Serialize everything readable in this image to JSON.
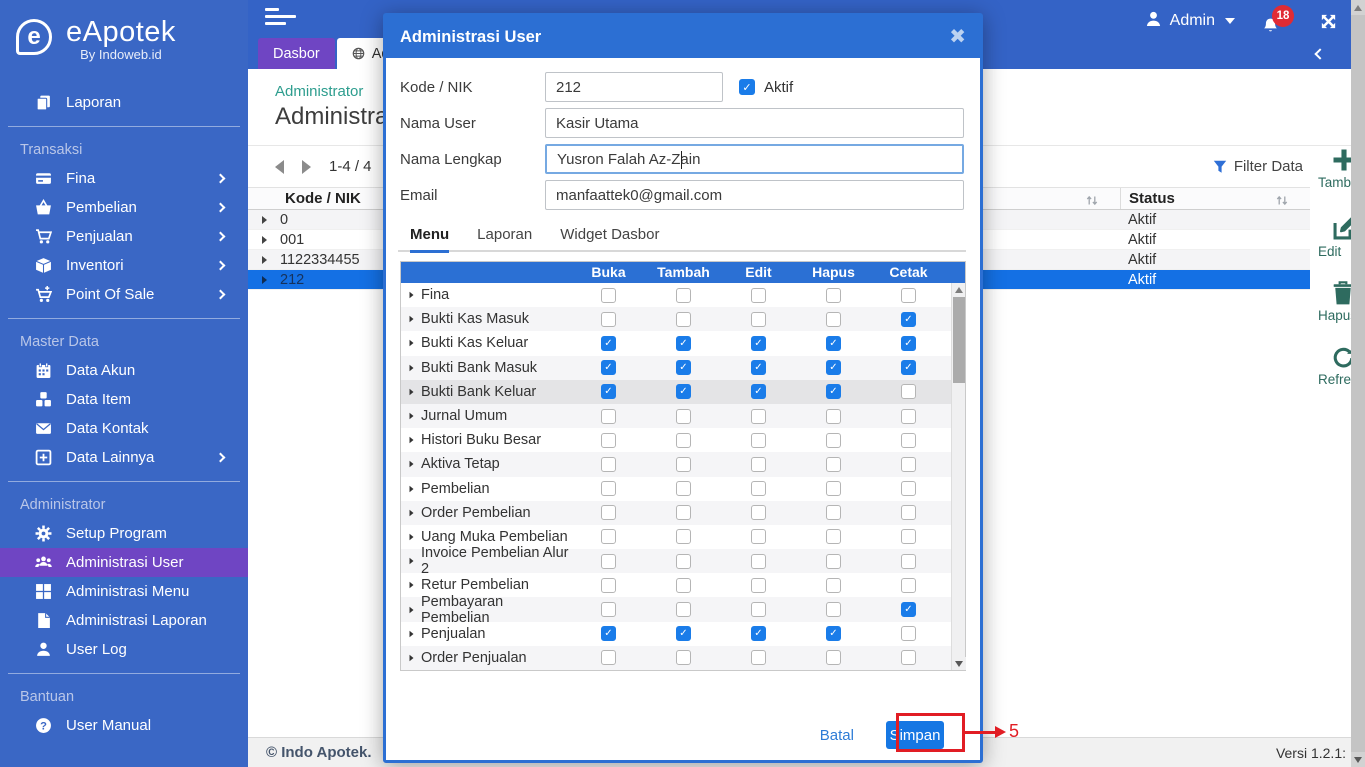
{
  "app": {
    "name": "eApotek",
    "tagline": "By Indoweb.id"
  },
  "header": {
    "user_label": "Admin",
    "notification_count": "18",
    "tabs": [
      {
        "label": "Dasbor",
        "active": true
      },
      {
        "label": "Admi",
        "active": false,
        "icon": "globe"
      }
    ]
  },
  "sidebar": {
    "sections": [
      {
        "title": "",
        "items": [
          {
            "label": "Laporan",
            "icon": "copy"
          }
        ]
      },
      {
        "title": "Transaksi",
        "items": [
          {
            "label": "Fina",
            "icon": "credit-card",
            "chevron": true
          },
          {
            "label": "Pembelian",
            "icon": "basket",
            "chevron": true
          },
          {
            "label": "Penjualan",
            "icon": "cart",
            "chevron": true
          },
          {
            "label": "Inventori",
            "icon": "box",
            "chevron": true
          },
          {
            "label": "Point Of Sale",
            "icon": "cart-plus",
            "chevron": true
          }
        ]
      },
      {
        "title": "Master Data",
        "items": [
          {
            "label": "Data Akun",
            "icon": "calendar"
          },
          {
            "label": "Data Item",
            "icon": "cubes"
          },
          {
            "label": "Data Kontak",
            "icon": "envelope"
          },
          {
            "label": "Data Lainnya",
            "icon": "plus-square",
            "chevron": true
          }
        ]
      },
      {
        "title": "Administrator",
        "items": [
          {
            "label": "Setup Program",
            "icon": "gear"
          },
          {
            "label": "Administrasi User",
            "icon": "users",
            "active": true
          },
          {
            "label": "Administrasi Menu",
            "icon": "grid"
          },
          {
            "label": "Administrasi Laporan",
            "icon": "file"
          },
          {
            "label": "User Log",
            "icon": "user"
          }
        ]
      },
      {
        "title": "Bantuan",
        "items": [
          {
            "label": "User Manual",
            "icon": "question"
          }
        ]
      }
    ]
  },
  "page": {
    "breadcrumb": "Administrator",
    "title": "Administrasi",
    "pagination": "1-4 / 4",
    "filter_label": "Filter Data",
    "table": {
      "columns": [
        "Kode / NIK",
        "Status"
      ],
      "rows": [
        {
          "kode": "0",
          "status": "Aktif",
          "selected": false
        },
        {
          "kode": "001",
          "status": "Aktif",
          "selected": false
        },
        {
          "kode": "1122334455",
          "status": "Aktif",
          "selected": false
        },
        {
          "kode": "212",
          "status": "Aktif",
          "selected": true
        }
      ]
    },
    "footer_left": "© Indo Apotek.",
    "footer_right": "Versi 1.2.1:"
  },
  "actions": [
    {
      "label": "Tambah",
      "icon": "plus"
    },
    {
      "label": "Edit",
      "icon": "edit"
    },
    {
      "label": "Hapus",
      "icon": "trash"
    },
    {
      "label": "Refresh",
      "icon": "refresh"
    }
  ],
  "modal": {
    "title": "Administrasi User",
    "fields": {
      "kode_label": "Kode / NIK",
      "kode_value": "212",
      "aktif_label": "Aktif",
      "aktif_checked": true,
      "nama_user_label": "Nama User",
      "nama_user_value": "Kasir Utama",
      "nama_lengkap_label": "Nama Lengkap",
      "nama_lengkap_value": "Yusron Falah Az-Zain",
      "email_label": "Email",
      "email_value": "manfaattek0@gmail.com"
    },
    "tabs": [
      "Menu",
      "Laporan",
      "Widget Dasbor"
    ],
    "active_tab": "Menu",
    "permission_columns": [
      "Buka",
      "Tambah",
      "Edit",
      "Hapus",
      "Cetak"
    ],
    "permissions": [
      {
        "name": "Fina",
        "values": [
          0,
          0,
          0,
          0,
          0
        ]
      },
      {
        "name": "Bukti Kas Masuk",
        "values": [
          0,
          0,
          0,
          0,
          1
        ]
      },
      {
        "name": "Bukti Kas Keluar",
        "values": [
          1,
          1,
          1,
          1,
          1
        ]
      },
      {
        "name": "Bukti Bank Masuk",
        "values": [
          1,
          1,
          1,
          1,
          1
        ]
      },
      {
        "name": "Bukti Bank Keluar",
        "values": [
          1,
          1,
          1,
          1,
          0
        ],
        "highlight": true
      },
      {
        "name": "Jurnal Umum",
        "values": [
          0,
          0,
          0,
          0,
          0
        ]
      },
      {
        "name": "Histori Buku Besar",
        "values": [
          0,
          0,
          0,
          0,
          0
        ]
      },
      {
        "name": "Aktiva Tetap",
        "values": [
          0,
          0,
          0,
          0,
          0
        ]
      },
      {
        "name": "Pembelian",
        "values": [
          0,
          0,
          0,
          0,
          0
        ]
      },
      {
        "name": "Order Pembelian",
        "values": [
          0,
          0,
          0,
          0,
          0
        ]
      },
      {
        "name": "Uang Muka Pembelian",
        "values": [
          0,
          0,
          0,
          0,
          0
        ]
      },
      {
        "name": "Invoice Pembelian Alur 2",
        "values": [
          0,
          0,
          0,
          0,
          0
        ]
      },
      {
        "name": "Retur Pembelian",
        "values": [
          0,
          0,
          0,
          0,
          0
        ]
      },
      {
        "name": "Pembayaran Pembelian",
        "values": [
          0,
          0,
          0,
          0,
          1
        ]
      },
      {
        "name": "Penjualan",
        "values": [
          1,
          1,
          1,
          1,
          0
        ]
      },
      {
        "name": "Order Penjualan",
        "values": [
          0,
          0,
          0,
          0,
          0
        ]
      }
    ],
    "cancel_label": "Batal",
    "save_label": "Simpan"
  },
  "annotation": {
    "step": "5"
  },
  "colors": {
    "sidebar_blue": "#3a67c5",
    "topbar_blue": "#3463c6",
    "active_purple": "#6f45c3",
    "modal_blue": "#2c6fd3",
    "checkbox_blue": "#1a7ce9",
    "selected_row_blue": "#1470e4",
    "breadcrumb_teal": "#2d9d8e",
    "action_teal": "#2e6b5f",
    "annotation_red": "#e11d24",
    "badge_red": "#e02b35"
  }
}
